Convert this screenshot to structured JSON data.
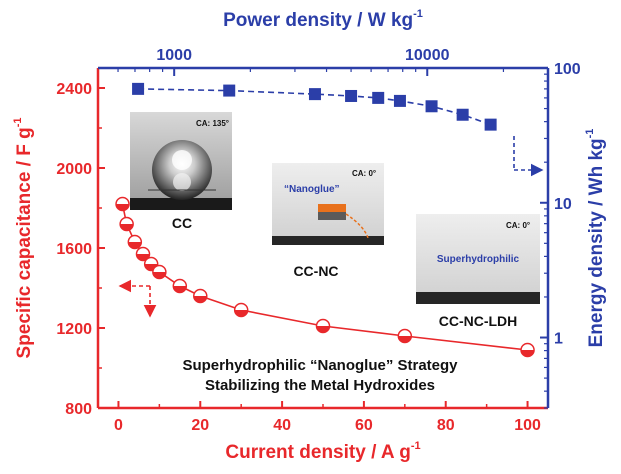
{
  "chart_data": {
    "type": "scatter",
    "top_axis": {
      "label": "Power density / W kg",
      "label_sup": "-1",
      "scale": "log",
      "range": [
        500,
        30000
      ],
      "ticks": [
        "1000",
        "10000"
      ],
      "color": "#2b3ea8"
    },
    "left_axis": {
      "label": "Specific capacitance / F g",
      "label_sup": "-1",
      "range": [
        800,
        2500
      ],
      "ticks": [
        "800",
        "1200",
        "1600",
        "2000",
        "2400"
      ],
      "color": "#e8282b"
    },
    "bottom_axis": {
      "label": "Current density / A g",
      "label_sup": "-1",
      "range": [
        -5,
        105
      ],
      "ticks": [
        "0",
        "20",
        "40",
        "60",
        "80",
        "100"
      ],
      "color": "#e8282b"
    },
    "right_axis": {
      "label": "Energy density / Wh kg",
      "label_sup": "-1",
      "scale": "log",
      "range": [
        0.3,
        100
      ],
      "ticks": [
        "1",
        "10",
        "100"
      ],
      "color": "#2b3ea8"
    },
    "series": [
      {
        "color": "#e8282b",
        "marker": "half-filled circle",
        "axes": "bottom-left",
        "x": [
          1,
          2,
          4,
          6,
          8,
          10,
          15,
          20,
          30,
          50,
          70,
          100
        ],
        "y": [
          1820,
          1720,
          1630,
          1570,
          1520,
          1480,
          1410,
          1360,
          1290,
          1210,
          1160,
          1090
        ]
      },
      {
        "color": "#2b3ea8",
        "marker": "square",
        "axes": "top-right",
        "x": [
          720,
          1650,
          3600,
          5000,
          6400,
          7800,
          10400,
          13800,
          17800
        ],
        "y": [
          70,
          68,
          64,
          62,
          60,
          57,
          52,
          45,
          38
        ]
      }
    ],
    "grid": false,
    "annotations": {
      "title_line1": "Superhydrophilic “Nanoglue” Strategy",
      "title_line2": "Stabilizing the Metal Hydroxides",
      "inset_cc": "CC",
      "inset_cc_ca": "CA: 135°",
      "inset_ccnc": "CC-NC",
      "inset_ccnc_ca": "CA: 0°",
      "inset_ccnc_glue": "“Nanoglue”",
      "inset_ldh": "CC-NC-LDH",
      "inset_ldh_ca": "CA: 0°",
      "inset_ldh_tag": "Superhydrophilic"
    }
  }
}
